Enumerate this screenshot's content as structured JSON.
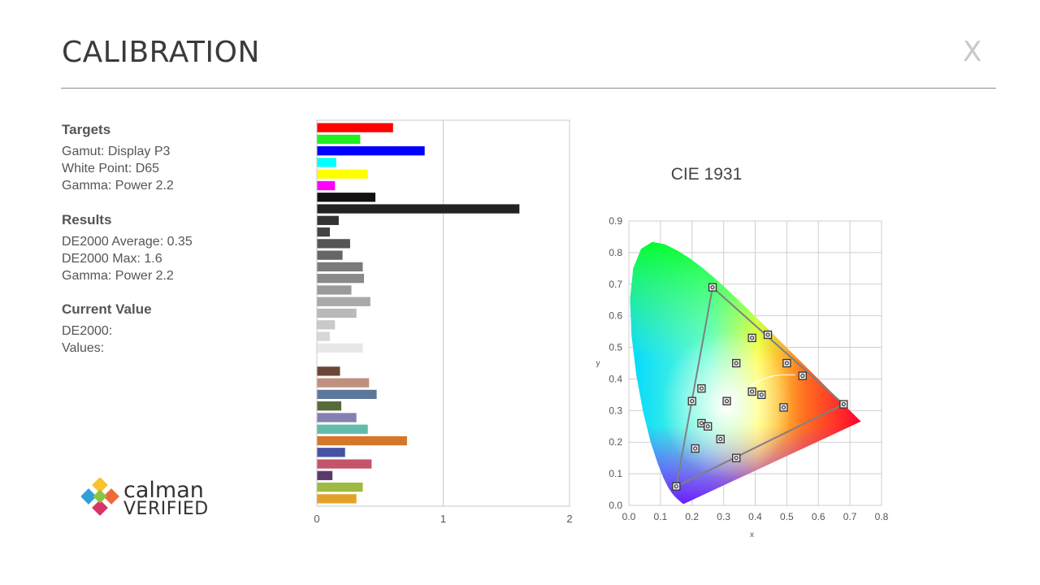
{
  "window": {
    "title": "CALIBRATION",
    "close_label": "X"
  },
  "targets": {
    "heading": "Targets",
    "gamut": "Gamut: Display P3",
    "white_point": "White Point: D65",
    "gamma": "Gamma: Power 2.2"
  },
  "results": {
    "heading": "Results",
    "de_avg": "DE2000 Average: 0.35",
    "de_max": "DE2000 Max: 1.6",
    "gamma": "Gamma: Power 2.2"
  },
  "current": {
    "heading": "Current Value",
    "de": "DE2000:",
    "values": "Values:"
  },
  "logo": {
    "line1": "calman",
    "line2": "VERIFIED"
  },
  "chart_data": [
    {
      "type": "bar",
      "orientation": "horizontal",
      "xlim": [
        0,
        2
      ],
      "x_ticks": [
        "0",
        "1",
        "2"
      ],
      "grid": true,
      "bars": [
        {
          "value": 0.6,
          "color": "#ff0000"
        },
        {
          "value": 0.34,
          "color": "#22ee22"
        },
        {
          "value": 0.85,
          "color": "#0000ff"
        },
        {
          "value": 0.15,
          "color": "#00ffff"
        },
        {
          "value": 0.4,
          "color": "#ffff00"
        },
        {
          "value": 0.14,
          "color": "#ff00ff"
        },
        {
          "value": 0.46,
          "color": "#111111"
        },
        {
          "value": 1.6,
          "color": "#222222"
        },
        {
          "value": 0.17,
          "color": "#333333"
        },
        {
          "value": 0.1,
          "color": "#444444"
        },
        {
          "value": 0.26,
          "color": "#555555"
        },
        {
          "value": 0.2,
          "color": "#666666"
        },
        {
          "value": 0.36,
          "color": "#7b7b7b"
        },
        {
          "value": 0.37,
          "color": "#8a8a8a"
        },
        {
          "value": 0.27,
          "color": "#9a9a9a"
        },
        {
          "value": 0.42,
          "color": "#a9a9a9"
        },
        {
          "value": 0.31,
          "color": "#b9b9b9"
        },
        {
          "value": 0.14,
          "color": "#c9c9c9"
        },
        {
          "value": 0.1,
          "color": "#d8d8d8"
        },
        {
          "value": 0.36,
          "color": "#e8e8e8"
        },
        {
          "value": 0.0,
          "color": "#f5f5f5"
        },
        {
          "value": 0.18,
          "color": "#6b4638"
        },
        {
          "value": 0.41,
          "color": "#c0907e"
        },
        {
          "value": 0.47,
          "color": "#5c779a"
        },
        {
          "value": 0.19,
          "color": "#556b3a"
        },
        {
          "value": 0.31,
          "color": "#8480b3"
        },
        {
          "value": 0.4,
          "color": "#62bca9"
        },
        {
          "value": 0.71,
          "color": "#d4772a"
        },
        {
          "value": 0.22,
          "color": "#4652a4"
        },
        {
          "value": 0.43,
          "color": "#c35469"
        },
        {
          "value": 0.12,
          "color": "#5a3a68"
        },
        {
          "value": 0.36,
          "color": "#9eba42"
        },
        {
          "value": 0.31,
          "color": "#e2a229"
        }
      ]
    },
    {
      "type": "scatter",
      "title": "CIE 1931",
      "xlabel": "x",
      "ylabel": "y",
      "xlim": [
        0,
        0.8
      ],
      "ylim": [
        0,
        0.9
      ],
      "x_ticks": [
        "0.0",
        "0.1",
        "0.2",
        "0.3",
        "0.4",
        "0.5",
        "0.6",
        "0.7",
        "0.8"
      ],
      "y_ticks": [
        "0.0",
        "0.1",
        "0.2",
        "0.3",
        "0.4",
        "0.5",
        "0.6",
        "0.7",
        "0.8",
        "0.9"
      ],
      "grid": true,
      "gamut_triangle": [
        [
          0.68,
          0.32
        ],
        [
          0.265,
          0.69
        ],
        [
          0.15,
          0.06
        ]
      ],
      "locus": [
        [
          0.1741,
          0.005
        ],
        [
          0.1738,
          0.0049
        ],
        [
          0.1736,
          0.0049
        ],
        [
          0.1733,
          0.0048
        ],
        [
          0.173,
          0.0048
        ],
        [
          0.1726,
          0.0048
        ],
        [
          0.1721,
          0.0048
        ],
        [
          0.1714,
          0.0051
        ],
        [
          0.1703,
          0.0058
        ],
        [
          0.1689,
          0.0069
        ],
        [
          0.1669,
          0.0086
        ],
        [
          0.1644,
          0.0109
        ],
        [
          0.1611,
          0.0138
        ],
        [
          0.1566,
          0.0177
        ],
        [
          0.151,
          0.0227
        ],
        [
          0.144,
          0.0297
        ],
        [
          0.1355,
          0.0399
        ],
        [
          0.1241,
          0.0578
        ],
        [
          0.1096,
          0.0868
        ],
        [
          0.0913,
          0.1327
        ],
        [
          0.0687,
          0.2007
        ],
        [
          0.0454,
          0.295
        ],
        [
          0.0235,
          0.4127
        ],
        [
          0.0082,
          0.5384
        ],
        [
          0.0039,
          0.6548
        ],
        [
          0.0139,
          0.7502
        ],
        [
          0.0389,
          0.812
        ],
        [
          0.0743,
          0.8338
        ],
        [
          0.1142,
          0.8262
        ],
        [
          0.1547,
          0.8059
        ],
        [
          0.1929,
          0.7816
        ],
        [
          0.2296,
          0.7543
        ],
        [
          0.2658,
          0.7243
        ],
        [
          0.3016,
          0.6923
        ],
        [
          0.3373,
          0.6589
        ],
        [
          0.3731,
          0.6245
        ],
        [
          0.4087,
          0.5896
        ],
        [
          0.4441,
          0.5547
        ],
        [
          0.4788,
          0.5202
        ],
        [
          0.5125,
          0.4866
        ],
        [
          0.5448,
          0.4544
        ],
        [
          0.5752,
          0.4242
        ],
        [
          0.6029,
          0.3965
        ],
        [
          0.627,
          0.3725
        ],
        [
          0.6482,
          0.3514
        ],
        [
          0.6658,
          0.334
        ],
        [
          0.6801,
          0.3197
        ],
        [
          0.6915,
          0.3083
        ],
        [
          0.7006,
          0.2993
        ],
        [
          0.7079,
          0.292
        ],
        [
          0.714,
          0.2859
        ],
        [
          0.719,
          0.2809
        ],
        [
          0.723,
          0.277
        ],
        [
          0.726,
          0.274
        ],
        [
          0.7283,
          0.2717
        ],
        [
          0.73,
          0.27
        ],
        [
          0.7311,
          0.2689
        ],
        [
          0.732,
          0.268
        ],
        [
          0.7327,
          0.2673
        ],
        [
          0.7334,
          0.2666
        ],
        [
          0.734,
          0.266
        ],
        [
          0.7344,
          0.2656
        ],
        [
          0.7347,
          0.2653
        ]
      ],
      "planckian": [
        [
          0.5268,
          0.4133
        ],
        [
          0.488,
          0.4133
        ],
        [
          0.4578,
          0.4101
        ],
        [
          0.4338,
          0.403
        ],
        [
          0.408,
          0.3916
        ],
        [
          0.3805,
          0.3768
        ],
        [
          0.3615,
          0.3621
        ],
        [
          0.3451,
          0.3516
        ],
        [
          0.3325,
          0.3428
        ],
        [
          0.3221,
          0.3318
        ],
        [
          0.3135,
          0.3236
        ],
        [
          0.2998,
          0.3101
        ],
        [
          0.2807,
          0.2884
        ]
      ],
      "points": [
        [
          0.68,
          0.32
        ],
        [
          0.265,
          0.69
        ],
        [
          0.15,
          0.06
        ],
        [
          0.2,
          0.33
        ],
        [
          0.23,
          0.37
        ],
        [
          0.34,
          0.45
        ],
        [
          0.39,
          0.53
        ],
        [
          0.44,
          0.54
        ],
        [
          0.5,
          0.45
        ],
        [
          0.55,
          0.41
        ],
        [
          0.39,
          0.36
        ],
        [
          0.42,
          0.35
        ],
        [
          0.31,
          0.33
        ],
        [
          0.49,
          0.31
        ],
        [
          0.23,
          0.26
        ],
        [
          0.25,
          0.25
        ],
        [
          0.29,
          0.21
        ],
        [
          0.21,
          0.18
        ],
        [
          0.34,
          0.15
        ]
      ]
    }
  ]
}
